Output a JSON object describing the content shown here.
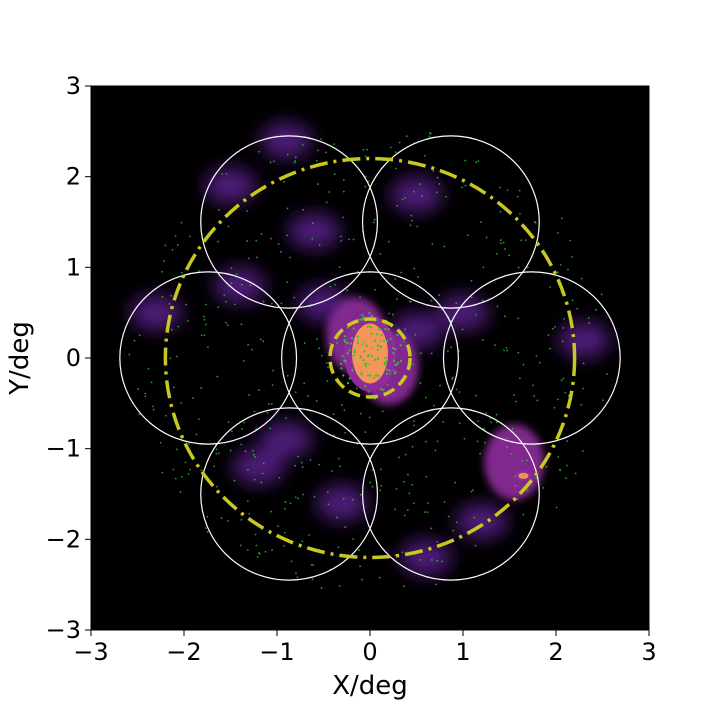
{
  "chart_data": {
    "type": "scatter",
    "title": "",
    "xlabel": "X/deg",
    "ylabel": "Y/deg",
    "xlim": [
      -3,
      3
    ],
    "ylim": [
      -3,
      3
    ],
    "xticks": [
      -3,
      -2,
      -1,
      0,
      1,
      2,
      3
    ],
    "yticks": [
      -3,
      -2,
      -1,
      0,
      1,
      2,
      3
    ],
    "xtick_labels": [
      "−3",
      "−2",
      "−1",
      "0",
      "1",
      "2",
      "3"
    ],
    "ytick_labels": [
      "−3",
      "−2",
      "−1",
      "0",
      "1",
      "2",
      "3"
    ],
    "grid": false,
    "background": "black",
    "fields": {
      "color": "#ffffff",
      "radius": 0.95,
      "centers": [
        [
          0,
          0
        ],
        [
          0.87,
          1.5
        ],
        [
          -0.87,
          1.5
        ],
        [
          1.74,
          0
        ],
        [
          -1.74,
          0
        ],
        [
          0.87,
          -1.5
        ],
        [
          -0.87,
          -1.5
        ]
      ]
    },
    "outer_circle": {
      "center": [
        0,
        0
      ],
      "radius": 2.2,
      "style": "dash-dot",
      "color": "#c8c81e"
    },
    "inner_circle": {
      "center": [
        0,
        0
      ],
      "radius": 0.43,
      "style": "dashed",
      "color": "#c8c81e"
    },
    "density_blobs": [
      {
        "x": 0.0,
        "y": 0.05,
        "level": "high"
      },
      {
        "x": 1.65,
        "y": -1.3,
        "level": "high"
      },
      {
        "x": -0.15,
        "y": 0.25,
        "level": "mid"
      },
      {
        "x": 0.2,
        "y": -0.1,
        "level": "mid"
      },
      {
        "x": 1.55,
        "y": -1.15,
        "level": "mid"
      },
      {
        "x": -0.9,
        "y": 2.4,
        "level": "low"
      },
      {
        "x": -1.5,
        "y": 1.9,
        "level": "low"
      },
      {
        "x": -1.4,
        "y": 0.8,
        "level": "low"
      },
      {
        "x": -2.3,
        "y": 0.5,
        "level": "low"
      },
      {
        "x": -1.2,
        "y": -1.2,
        "level": "low"
      },
      {
        "x": -0.9,
        "y": -0.9,
        "level": "low"
      },
      {
        "x": -0.6,
        "y": 1.4,
        "level": "low"
      },
      {
        "x": 0.5,
        "y": 1.8,
        "level": "low"
      },
      {
        "x": 1.0,
        "y": 0.5,
        "level": "low"
      },
      {
        "x": 0.6,
        "y": -2.2,
        "level": "low"
      },
      {
        "x": 1.2,
        "y": -1.8,
        "level": "low"
      },
      {
        "x": -0.3,
        "y": -1.6,
        "level": "low"
      },
      {
        "x": 2.3,
        "y": 0.2,
        "level": "low"
      },
      {
        "x": -0.5,
        "y": 0.6,
        "level": "low"
      },
      {
        "x": 0.5,
        "y": 0.3,
        "level": "low"
      }
    ],
    "colors": {
      "low": "#5a1f8c",
      "mid": "#8e2c9c",
      "high": "#f4955a",
      "points": "#2ec52e",
      "background": "#000000"
    }
  }
}
